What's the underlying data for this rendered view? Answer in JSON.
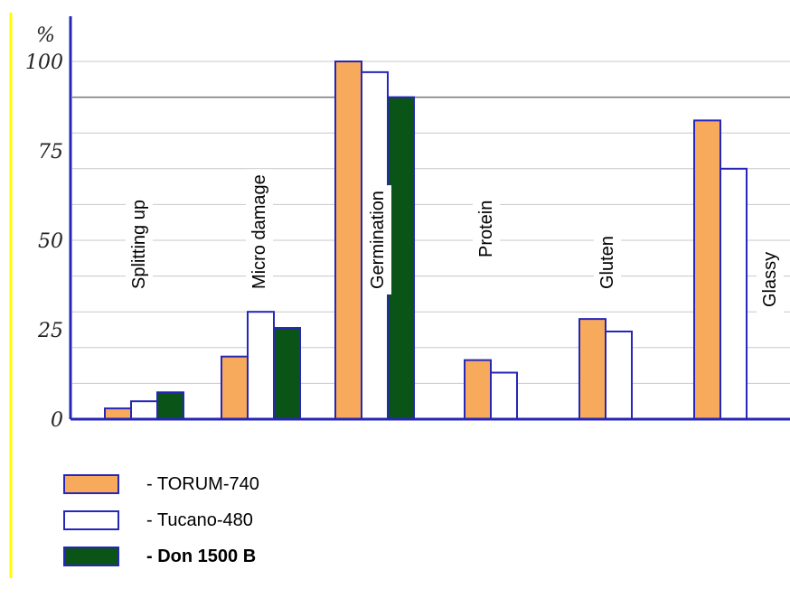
{
  "chart_data": {
    "type": "bar",
    "unit_label": "%",
    "categories": [
      "Splitting up",
      "Micro damage",
      "Germination",
      "Protein",
      "Gluten",
      "Glassy"
    ],
    "y_ticks": [
      "0",
      "25",
      "50",
      "75",
      "100"
    ],
    "ylim": [
      0,
      100
    ],
    "grid": true,
    "legend_position": "bottom-left",
    "series": [
      {
        "name": "- TORUM-740",
        "color": "#f7a95c",
        "values": [
          3,
          17.5,
          100,
          16.5,
          28,
          83.5
        ]
      },
      {
        "name": "- Tucano-480",
        "color": "#ffffff",
        "values": [
          5,
          30,
          97,
          13,
          24.5,
          70
        ]
      },
      {
        "name": "- Don 1500 B",
        "color": "#0a5418",
        "values": [
          7.5,
          25.5,
          90,
          null,
          null,
          null
        ]
      }
    ],
    "bar_outline_color": "#2626b8",
    "axis_color": "#2626b8",
    "frame_color": "#ffff00"
  }
}
